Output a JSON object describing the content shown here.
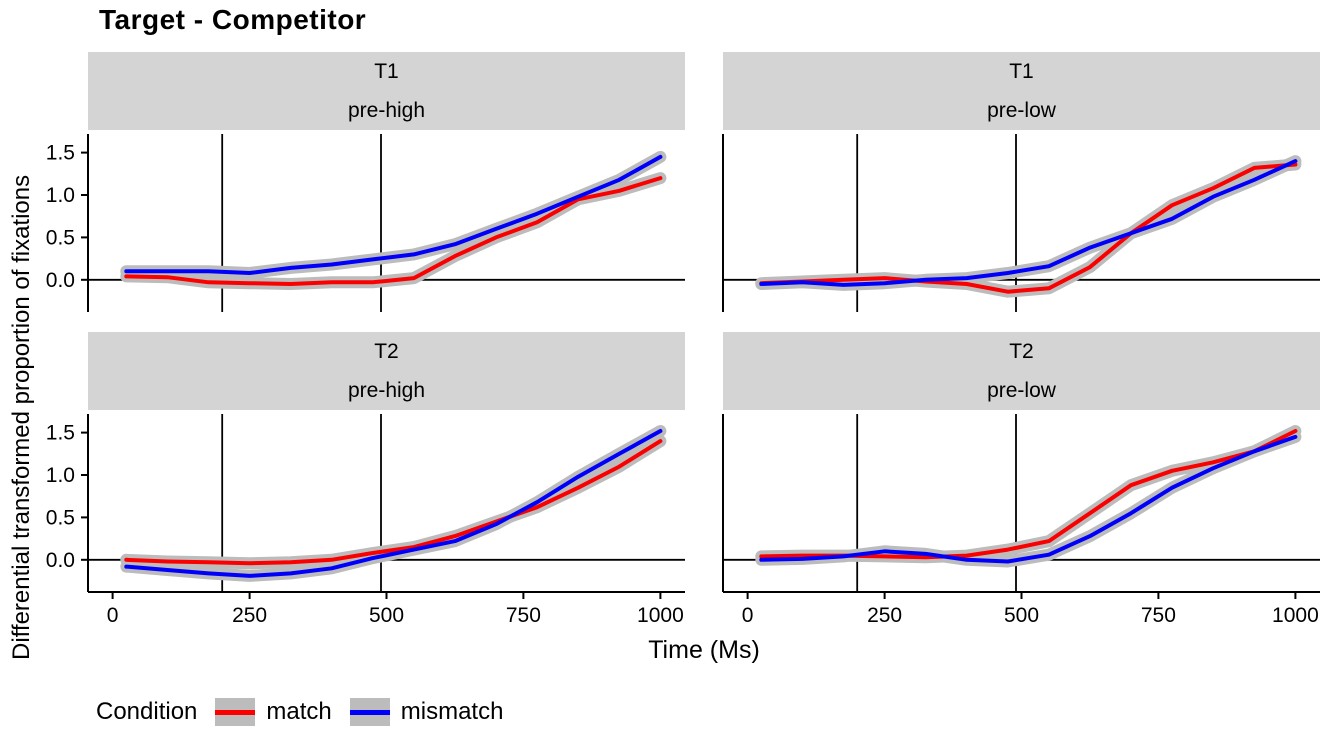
{
  "chart_data": {
    "type": "line",
    "title": "Target - Competitor",
    "xlabel": "Time (Ms)",
    "ylabel": "Differential transformed proportion of fixations",
    "xlim": [
      0,
      1000
    ],
    "ylim": [
      -0.38,
      1.72
    ],
    "x_ticks": [
      0,
      250,
      500,
      750,
      1000
    ],
    "y_ticks": [
      0.0,
      0.5,
      1.0,
      1.5
    ],
    "vlines": [
      200,
      490
    ],
    "hline": 0,
    "grid": false,
    "colors": {
      "match": "#fa0000",
      "mismatch": "#0000fa",
      "ribbon": "#bcbcbc",
      "strip_bg": "#d4d4d4",
      "axis": "#000000"
    },
    "legend": {
      "title": "Condition",
      "position": "bottom",
      "entries": [
        {
          "label": "match",
          "color": "#fa0000"
        },
        {
          "label": "mismatch",
          "color": "#0000fa"
        }
      ]
    },
    "x": [
      25,
      100,
      175,
      250,
      325,
      400,
      475,
      550,
      625,
      700,
      775,
      850,
      925,
      1000
    ],
    "facets": [
      {
        "strip_line1": "T1",
        "strip_line2": "pre-high",
        "series": [
          {
            "name": "match",
            "values": [
              0.04,
              0.03,
              -0.03,
              -0.04,
              -0.05,
              -0.03,
              -0.03,
              0.02,
              0.28,
              0.5,
              0.68,
              0.95,
              1.05,
              1.2
            ]
          },
          {
            "name": "mismatch",
            "values": [
              0.1,
              0.1,
              0.1,
              0.08,
              0.14,
              0.18,
              0.24,
              0.3,
              0.42,
              0.6,
              0.78,
              0.98,
              1.18,
              1.45
            ]
          }
        ]
      },
      {
        "strip_line1": "T1",
        "strip_line2": "pre-low",
        "series": [
          {
            "name": "match",
            "values": [
              -0.04,
              -0.02,
              0.0,
              0.02,
              -0.02,
              -0.05,
              -0.14,
              -0.1,
              0.15,
              0.55,
              0.88,
              1.08,
              1.32,
              1.36
            ]
          },
          {
            "name": "mismatch",
            "values": [
              -0.05,
              -0.03,
              -0.06,
              -0.04,
              0.0,
              0.02,
              0.08,
              0.16,
              0.38,
              0.55,
              0.72,
              0.98,
              1.18,
              1.4
            ]
          }
        ]
      },
      {
        "strip_line1": "T2",
        "strip_line2": "pre-high",
        "series": [
          {
            "name": "match",
            "values": [
              0.0,
              -0.02,
              -0.03,
              -0.04,
              -0.03,
              0.0,
              0.08,
              0.15,
              0.28,
              0.45,
              0.62,
              0.85,
              1.1,
              1.4
            ]
          },
          {
            "name": "mismatch",
            "values": [
              -0.08,
              -0.12,
              -0.16,
              -0.19,
              -0.16,
              -0.1,
              0.02,
              0.12,
              0.22,
              0.42,
              0.68,
              0.98,
              1.25,
              1.52
            ]
          }
        ]
      },
      {
        "strip_line1": "T2",
        "strip_line2": "pre-low",
        "series": [
          {
            "name": "match",
            "values": [
              0.04,
              0.05,
              0.05,
              0.04,
              0.03,
              0.05,
              0.12,
              0.22,
              0.55,
              0.88,
              1.05,
              1.15,
              1.28,
              1.52
            ]
          },
          {
            "name": "mismatch",
            "values": [
              0.0,
              0.01,
              0.04,
              0.1,
              0.07,
              0.0,
              -0.02,
              0.06,
              0.28,
              0.55,
              0.85,
              1.08,
              1.28,
              1.45
            ]
          }
        ]
      }
    ]
  }
}
